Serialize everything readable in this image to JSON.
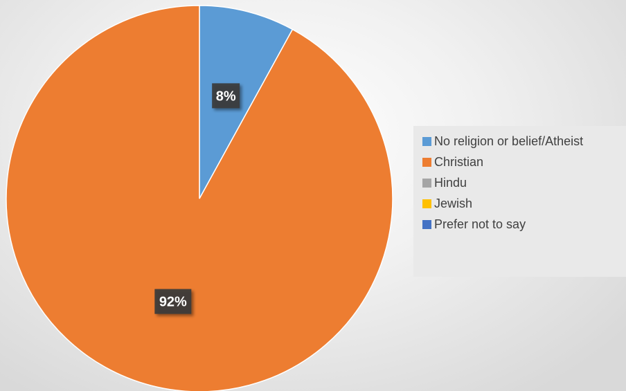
{
  "chart_data": {
    "type": "pie",
    "categories": [
      "No religion or belief/Atheist",
      "Christian",
      "Hindu",
      "Jewish",
      "Prefer not to say"
    ],
    "values": [
      8,
      92,
      0,
      0,
      0
    ],
    "data_labels": [
      "8%",
      "92%",
      "",
      "",
      ""
    ],
    "colors": [
      "#5b9bd5",
      "#ed7d31",
      "#a5a5a5",
      "#ffc000",
      "#4472c4"
    ],
    "legend_position": "right",
    "title": ""
  }
}
